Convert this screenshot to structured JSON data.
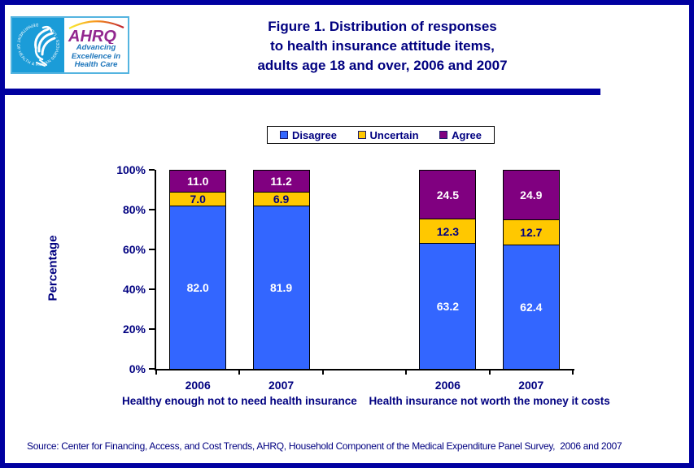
{
  "header": {
    "logo": {
      "seal_text": "DEPARTMENT OF HEALTH & HUMAN SERVICES - USA",
      "acronym": "AHRQ",
      "tagline_lines": [
        "Advancing",
        "Excellence in",
        "Health Care"
      ]
    },
    "title_lines": [
      "Figure 1. Distribution of responses",
      "to health insurance attitude items,",
      "adults age 18 and over, 2006 and 2007"
    ]
  },
  "chart_data": {
    "type": "bar",
    "stacked": true,
    "ylabel": "Percentage",
    "ylim": [
      0,
      100
    ],
    "yticks": [
      100,
      80,
      60,
      40,
      20,
      0
    ],
    "ytick_labels": [
      "100%",
      "80%",
      "60%",
      "40%",
      "20%",
      "0%"
    ],
    "grid": false,
    "legend_position": "top",
    "legend": [
      {
        "label": "Disagree",
        "color": "#3366FF",
        "value_color": "#FFFFFF"
      },
      {
        "label": "Uncertain",
        "color": "#FFC800",
        "value_color": "#000080"
      },
      {
        "label": "Agree",
        "color": "#800080",
        "value_color": "#FFFFFF"
      }
    ],
    "groups": [
      {
        "label": "Healthy enough not to need health insurance",
        "bars": [
          {
            "category": "2006",
            "values": [
              82.0,
              7.0,
              11.0
            ],
            "labels": [
              "82.0",
              "7.0",
              "11.0"
            ]
          },
          {
            "category": "2007",
            "values": [
              81.9,
              6.9,
              11.2
            ],
            "labels": [
              "81.9",
              "6.9",
              "11.2"
            ]
          }
        ]
      },
      {
        "label": "Health insurance not worth the money it costs",
        "bars": [
          {
            "category": "2006",
            "values": [
              63.2,
              12.3,
              24.5
            ],
            "labels": [
              "63.2",
              "12.3",
              "24.5"
            ]
          },
          {
            "category": "2007",
            "values": [
              62.4,
              12.7,
              24.9
            ],
            "labels": [
              "62.4",
              "12.7",
              "24.9"
            ]
          }
        ]
      }
    ]
  },
  "source": "Source: Center for Financing, Access, and Cost Trends, AHRQ, Household Component of the Medical Expenditure Panel Survey,  2006 and 2007",
  "colors": {
    "page_border": "#0000A0",
    "divider": "#0000A0",
    "text": "#000080",
    "axis": "#000000",
    "hhs_blue": "#1B9CD8",
    "ahrq_purple": "#92278F",
    "tagline_blue": "#1C75BB"
  }
}
